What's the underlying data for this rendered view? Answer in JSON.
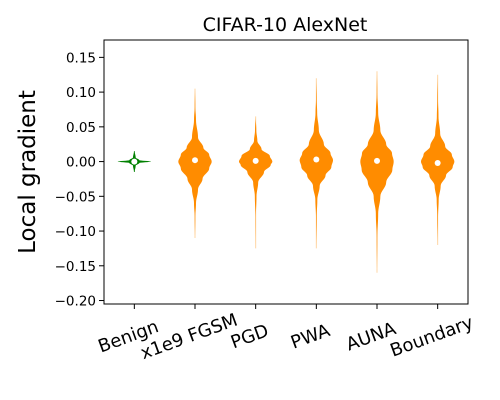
{
  "chart_data": {
    "type": "violin",
    "title": "CIFAR-10 AlexNet",
    "ylabel": "Local gradient",
    "xlabel": "",
    "ylim": [
      -0.205,
      0.175
    ],
    "yticks": [
      -0.2,
      -0.15,
      -0.1,
      -0.05,
      0.0,
      0.05,
      0.1,
      0.15
    ],
    "ytick_labels": [
      "−0.20",
      "−0.15",
      "−0.10",
      "−0.05",
      "0.00",
      "0.05",
      "0.10",
      "0.15"
    ],
    "grid": false,
    "categories": [
      "Benign",
      "FGSM",
      "PGD",
      "PWA",
      "AUNA",
      "Boundary"
    ],
    "category_labels": [
      "Benign",
      "x1e9 FGSM",
      "PGD",
      "PWA",
      "AUNA",
      "Boundary"
    ],
    "colors": {
      "benign": "#008000",
      "adversarial": "#ff8c00",
      "median_marker": "#ffffff"
    },
    "series": [
      {
        "category": "Benign",
        "color": "#008000",
        "median": 0.0,
        "min": -0.015,
        "max": 0.015,
        "max_halfwidth": 0.5,
        "profile": [
          [
            -0.015,
            0.02
          ],
          [
            -0.006,
            0.08
          ],
          [
            -0.002,
            0.3
          ],
          [
            0.0,
            1.0
          ],
          [
            0.002,
            0.3
          ],
          [
            0.006,
            0.08
          ],
          [
            0.015,
            0.02
          ]
        ]
      },
      {
        "category": "FGSM",
        "color": "#ff8c00",
        "median": 0.002,
        "min": -0.11,
        "max": 0.105,
        "max_halfwidth": 0.5,
        "profile": [
          [
            -0.11,
            0.0
          ],
          [
            -0.08,
            0.02
          ],
          [
            -0.06,
            0.06
          ],
          [
            -0.04,
            0.18
          ],
          [
            -0.025,
            0.45
          ],
          [
            -0.01,
            0.85
          ],
          [
            0.0,
            1.0
          ],
          [
            0.01,
            0.85
          ],
          [
            0.02,
            0.5
          ],
          [
            0.035,
            0.18
          ],
          [
            0.06,
            0.06
          ],
          [
            0.08,
            0.02
          ],
          [
            0.105,
            0.0
          ]
        ]
      },
      {
        "category": "PGD",
        "color": "#ff8c00",
        "median": 0.001,
        "min": -0.125,
        "max": 0.065,
        "max_halfwidth": 0.5,
        "profile": [
          [
            -0.125,
            0.0
          ],
          [
            -0.08,
            0.01
          ],
          [
            -0.05,
            0.05
          ],
          [
            -0.03,
            0.15
          ],
          [
            -0.015,
            0.5
          ],
          [
            -0.005,
            0.9
          ],
          [
            0.0,
            1.0
          ],
          [
            0.008,
            0.85
          ],
          [
            0.018,
            0.35
          ],
          [
            0.03,
            0.1
          ],
          [
            0.045,
            0.04
          ],
          [
            0.065,
            0.0
          ]
        ]
      },
      {
        "category": "PWA",
        "color": "#ff8c00",
        "median": 0.003,
        "min": -0.125,
        "max": 0.12,
        "max_halfwidth": 0.5,
        "profile": [
          [
            -0.125,
            0.0
          ],
          [
            -0.08,
            0.02
          ],
          [
            -0.055,
            0.06
          ],
          [
            -0.035,
            0.2
          ],
          [
            -0.02,
            0.55
          ],
          [
            -0.008,
            0.9
          ],
          [
            0.002,
            1.0
          ],
          [
            0.012,
            0.85
          ],
          [
            0.025,
            0.45
          ],
          [
            0.045,
            0.15
          ],
          [
            0.07,
            0.05
          ],
          [
            0.09,
            0.02
          ],
          [
            0.12,
            0.0
          ]
        ]
      },
      {
        "category": "AUNA",
        "color": "#ff8c00",
        "median": 0.001,
        "min": -0.16,
        "max": 0.13,
        "max_halfwidth": 0.5,
        "profile": [
          [
            -0.16,
            0.0
          ],
          [
            -0.11,
            0.02
          ],
          [
            -0.075,
            0.07
          ],
          [
            -0.05,
            0.2
          ],
          [
            -0.03,
            0.55
          ],
          [
            -0.012,
            0.92
          ],
          [
            0.0,
            1.0
          ],
          [
            0.012,
            0.9
          ],
          [
            0.025,
            0.55
          ],
          [
            0.045,
            0.2
          ],
          [
            0.07,
            0.07
          ],
          [
            0.1,
            0.02
          ],
          [
            0.13,
            0.0
          ]
        ]
      },
      {
        "category": "Boundary",
        "color": "#ff8c00",
        "median": -0.002,
        "min": -0.12,
        "max": 0.125,
        "max_halfwidth": 0.5,
        "profile": [
          [
            -0.12,
            0.0
          ],
          [
            -0.08,
            0.02
          ],
          [
            -0.055,
            0.06
          ],
          [
            -0.035,
            0.18
          ],
          [
            -0.02,
            0.5
          ],
          [
            -0.008,
            0.9
          ],
          [
            0.0,
            1.0
          ],
          [
            0.01,
            0.85
          ],
          [
            0.022,
            0.45
          ],
          [
            0.04,
            0.15
          ],
          [
            0.065,
            0.05
          ],
          [
            0.09,
            0.02
          ],
          [
            0.125,
            0.0
          ]
        ]
      }
    ]
  }
}
